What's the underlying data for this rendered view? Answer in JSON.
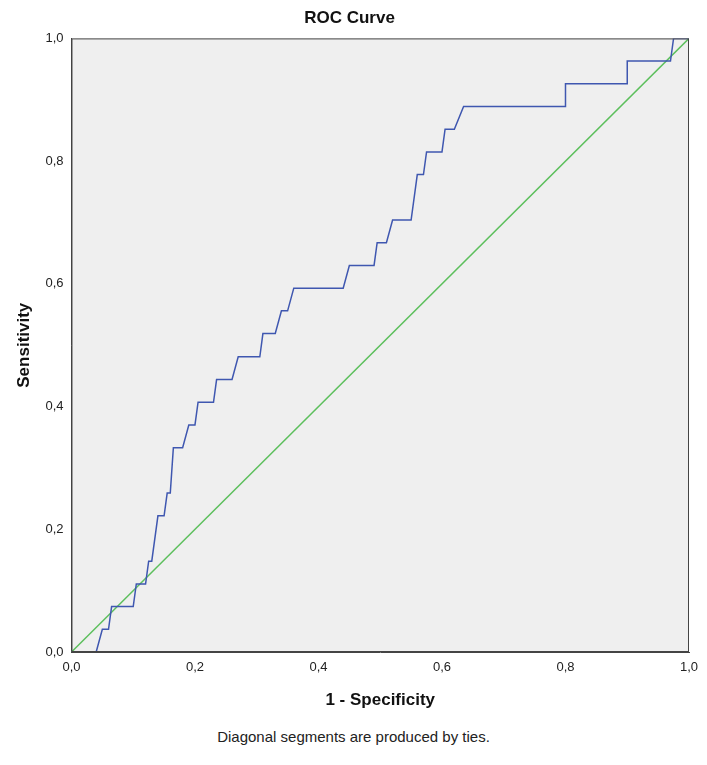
{
  "chart_data": {
    "type": "line",
    "title": "ROC Curve",
    "x_label": "1 - Specificity",
    "y_label": "Sensitivity",
    "annotation": "Diagonal segments are produced by ties.",
    "xlim": [
      0,
      1
    ],
    "ylim": [
      0,
      1
    ],
    "xticks": [
      {
        "value": 0,
        "label": "0,0"
      },
      {
        "value": 0.2,
        "label": "0,2"
      },
      {
        "value": 0.4,
        "label": "0,4"
      },
      {
        "value": 0.6,
        "label": "0,6"
      },
      {
        "value": 0.8,
        "label": "0,8"
      },
      {
        "value": 1,
        "label": "1,0"
      }
    ],
    "yticks": [
      {
        "value": 0,
        "label": "0,0"
      },
      {
        "value": 0.2,
        "label": "0,2"
      },
      {
        "value": 0.4,
        "label": "0,4"
      },
      {
        "value": 0.6,
        "label": "0,6"
      },
      {
        "value": 0.8,
        "label": "0,8"
      },
      {
        "value": 1,
        "label": "1,0"
      }
    ],
    "grid": false,
    "series": [
      {
        "color": "#3f57b0",
        "x": [
          0,
          0.04,
          0.05,
          0.06,
          0.065,
          0.1,
          0.105,
          0.12,
          0.125,
          0.13,
          0.14,
          0.15,
          0.155,
          0.16,
          0.165,
          0.18,
          0.19,
          0.2,
          0.205,
          0.23,
          0.235,
          0.26,
          0.27,
          0.305,
          0.31,
          0.33,
          0.34,
          0.35,
          0.36,
          0.44,
          0.45,
          0.49,
          0.495,
          0.51,
          0.52,
          0.55,
          0.56,
          0.57,
          0.575,
          0.6,
          0.605,
          0.62,
          0.635,
          0.8,
          0.8,
          0.9,
          0.9,
          0.97,
          0.975,
          1
        ],
        "values": [
          0,
          0,
          0.037,
          0.037,
          0.074,
          0.074,
          0.111,
          0.111,
          0.148,
          0.148,
          0.222,
          0.222,
          0.259,
          0.259,
          0.333,
          0.333,
          0.37,
          0.37,
          0.407,
          0.407,
          0.444,
          0.444,
          0.481,
          0.481,
          0.519,
          0.519,
          0.556,
          0.556,
          0.593,
          0.593,
          0.63,
          0.63,
          0.667,
          0.667,
          0.704,
          0.704,
          0.778,
          0.778,
          0.815,
          0.815,
          0.852,
          0.852,
          0.889,
          0.889,
          0.926,
          0.926,
          0.963,
          0.963,
          1,
          1
        ]
      },
      {
        "color": "#5cbf5c",
        "x": [
          0,
          1
        ],
        "values": [
          0,
          1
        ]
      }
    ]
  }
}
